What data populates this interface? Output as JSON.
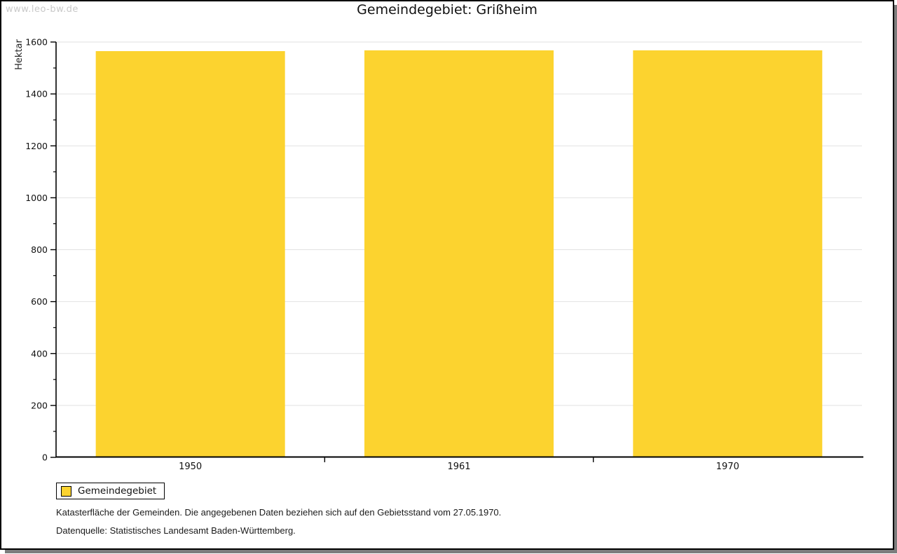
{
  "watermark": "www.leo-bw.de",
  "header": {
    "title": "Gemeindegebiet: Grißheim"
  },
  "legend": {
    "label": "Gemeindegebiet"
  },
  "footnotes": {
    "line1": "Katasterfläche der Gemeinden. Die angegebenen Daten beziehen sich auf den Gebietsstand vom 27.05.1970.",
    "line2": "Datenquelle: Statistisches Landesamt Baden-Württemberg."
  },
  "colors": {
    "bar": "#fcd32f",
    "grid": "#e2e2e2",
    "axis": "#000000",
    "tick_label": "#111111",
    "watermark": "#c9c9c9",
    "frame_shadow": "#7d7d7d"
  },
  "chart_data": {
    "type": "bar",
    "title": "Gemeindegebiet: Grißheim",
    "categories": [
      "1950",
      "1961",
      "1970"
    ],
    "series": [
      {
        "name": "Gemeindegebiet",
        "values": [
          1565,
          1568,
          1568
        ]
      }
    ],
    "xlabel": "",
    "ylabel": "Hektar",
    "unit": "Hektar",
    "ylim": [
      0,
      1600
    ],
    "ytick_step": 200,
    "yminor_step": 100,
    "grid": true,
    "legend_position": "bottom-left"
  }
}
